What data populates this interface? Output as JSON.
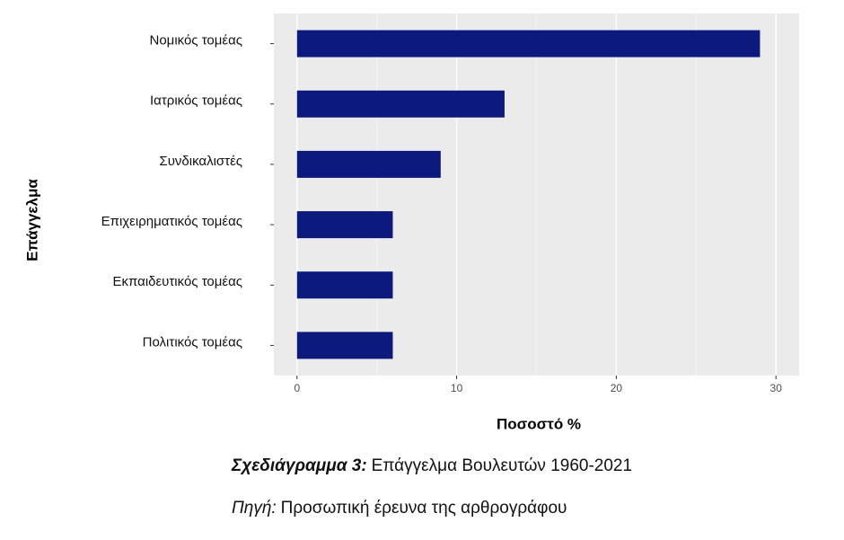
{
  "chart_data": {
    "type": "barh",
    "categories": [
      "Νομικός τομέας",
      "Ιατρικός τομέας",
      "Συνδικαλιστές",
      "Επιχειρηματικός τομέας",
      "Εκπαιδευτικός τομέας",
      "Πολιτικός τομέας"
    ],
    "values": [
      29,
      13,
      9,
      6,
      6,
      6
    ],
    "color": "#0c1a7d",
    "xlim": [
      -1.45,
      31.45
    ],
    "xticks": [
      0,
      10,
      20,
      30
    ],
    "xminorticks": [
      5,
      15,
      25
    ],
    "grid": true,
    "xlabel": "Ποσοστό %",
    "ylabel": "Επάγγελμα"
  },
  "caption": {
    "label": "Σχεδιάγραμμα 3:",
    "text": "Επάγγελμα Βουλευτών 1960-2021"
  },
  "source": {
    "label": "Πηγή:",
    "text": "Προσωπική έρευνα της αρθρογράφου"
  }
}
